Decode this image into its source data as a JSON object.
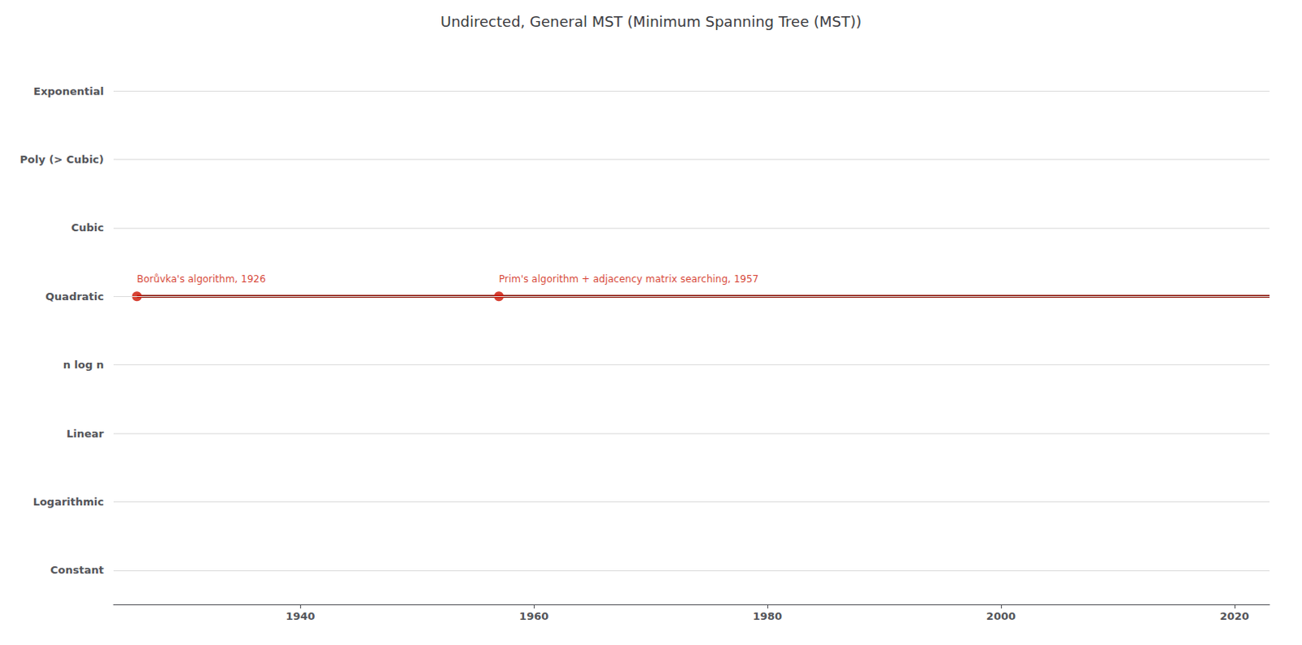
{
  "chart_data": {
    "type": "timeline",
    "title": "Undirected, General MST (Minimum Spanning Tree (MST))",
    "categories": [
      "Constant",
      "Logarithmic",
      "Linear",
      "n log n",
      "Quadratic",
      "Cubic",
      "Poly (> Cubic)",
      "Exponential"
    ],
    "xlim": [
      1924,
      2023
    ],
    "xticks": [
      1940,
      1960,
      1980,
      2000,
      2020
    ],
    "grid": true,
    "segments": [
      {
        "category": "Quadratic",
        "x_start": 1926,
        "x_end": 2023,
        "color": "#8B1000",
        "points": [
          {
            "x": 1926,
            "label": "Borůvka's algorithm, 1926",
            "color": "#CC1100"
          },
          {
            "x": 1957,
            "label": "Prim's algorithm + adjacency matrix searching, 1957",
            "color": "#CC1100"
          }
        ]
      }
    ]
  }
}
